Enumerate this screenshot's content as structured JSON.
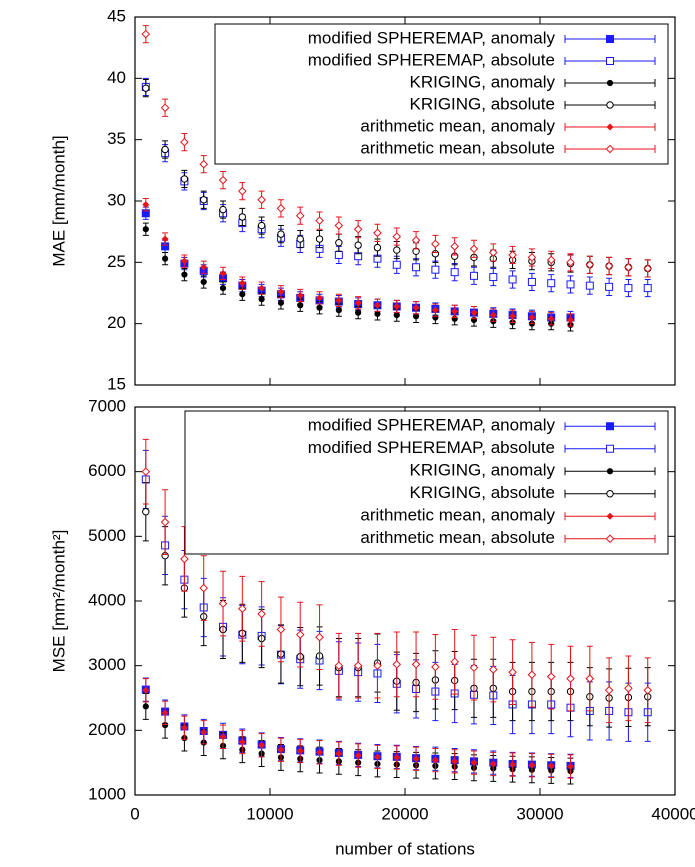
{
  "chart_data": [
    {
      "type": "scatter",
      "ylabel": "MAE [mm/month]",
      "legend": "upper right",
      "xlim": [
        0,
        40000
      ],
      "ylim": [
        15,
        45
      ],
      "yticks": [
        15,
        20,
        25,
        30,
        35,
        40,
        45
      ],
      "x": [
        800,
        2230,
        3660,
        5090,
        6520,
        7950,
        9380,
        10810,
        12240,
        13670,
        15100,
        16530,
        17960,
        19390,
        20820,
        22250,
        23680,
        25110,
        26540,
        27970,
        29400,
        30830,
        32260,
        33690,
        35120,
        36550,
        37980
      ],
      "series": [
        {
          "name": "modified SPHEREMAP, anomaly",
          "color": "#1a1aff",
          "marker": "square",
          "filled": true,
          "error": 0.5,
          "values": [
            29.0,
            26.3,
            24.9,
            24.3,
            23.7,
            23.1,
            22.7,
            22.4,
            22.1,
            21.9,
            21.8,
            21.6,
            21.5,
            21.4,
            21.3,
            21.2,
            21.0,
            20.9,
            20.8,
            20.7,
            20.6,
            20.5,
            20.5,
            null,
            null,
            null,
            null
          ]
        },
        {
          "name": "modified SPHEREMAP, absolute",
          "color": "#1a1aff",
          "marker": "square",
          "filled": false,
          "error": 0.7,
          "values": [
            39.3,
            33.9,
            31.6,
            30.0,
            29.0,
            28.2,
            27.7,
            27.0,
            26.5,
            26.1,
            25.6,
            25.5,
            25.3,
            24.8,
            24.6,
            24.4,
            24.2,
            23.9,
            23.8,
            23.6,
            23.4,
            23.3,
            23.2,
            23.1,
            23.0,
            22.9,
            22.9
          ]
        },
        {
          "name": "KRIGING, anomaly",
          "color": "#000000",
          "marker": "circle",
          "filled": true,
          "error": 0.5,
          "values": [
            27.7,
            25.3,
            24.0,
            23.4,
            22.9,
            22.4,
            22.0,
            21.7,
            21.5,
            21.3,
            21.1,
            20.9,
            20.8,
            20.7,
            20.6,
            20.5,
            20.4,
            20.3,
            20.2,
            20.1,
            20.0,
            20.0,
            19.9,
            null,
            null,
            null,
            null
          ]
        },
        {
          "name": "KRIGING, absolute",
          "color": "#000000",
          "marker": "circle",
          "filled": false,
          "error": 0.7,
          "values": [
            39.2,
            34.2,
            31.8,
            30.1,
            29.3,
            28.7,
            28.0,
            27.3,
            26.9,
            26.9,
            26.6,
            26.4,
            26.2,
            26.0,
            25.9,
            25.7,
            25.5,
            25.4,
            25.3,
            25.2,
            25.1,
            25.0,
            24.9,
            24.8,
            24.7,
            24.6,
            24.5
          ]
        },
        {
          "name": "arithmetic mean, anomaly",
          "color": "#e8141a",
          "marker": "diamond",
          "filled": true,
          "error": 0.5,
          "values": [
            29.7,
            26.9,
            25.1,
            24.6,
            24.1,
            23.3,
            22.9,
            22.6,
            22.3,
            22.1,
            21.9,
            21.7,
            21.5,
            21.4,
            21.3,
            21.1,
            21.0,
            20.9,
            20.7,
            20.6,
            20.5,
            20.4,
            20.3,
            null,
            null,
            null,
            null
          ]
        },
        {
          "name": "arithmetic mean, absolute",
          "color": "#e8141a",
          "marker": "diamond",
          "filled": false,
          "error": 0.7,
          "values": [
            43.6,
            37.6,
            34.8,
            33.0,
            31.7,
            30.8,
            30.1,
            29.4,
            28.8,
            28.4,
            28.0,
            27.7,
            27.4,
            27.1,
            26.8,
            26.5,
            26.3,
            26.1,
            25.8,
            25.6,
            25.4,
            25.2,
            25.0,
            24.8,
            24.7,
            24.6,
            24.5
          ]
        }
      ]
    },
    {
      "type": "scatter",
      "ylabel": "MSE [mm²/month²]",
      "xlabel": "number of stations",
      "legend": "upper right",
      "xlim": [
        0,
        40000
      ],
      "xticks": [
        0,
        10000,
        20000,
        30000,
        40000
      ],
      "ylim": [
        1000,
        7000
      ],
      "yticks": [
        1000,
        2000,
        3000,
        4000,
        5000,
        6000,
        7000
      ],
      "x": [
        800,
        2230,
        3660,
        5090,
        6520,
        7950,
        9380,
        10810,
        12240,
        13670,
        15100,
        16530,
        17960,
        19390,
        20820,
        22250,
        23680,
        25110,
        26540,
        27970,
        29400,
        30830,
        32260,
        33690,
        35120,
        36550,
        37980
      ],
      "series": [
        {
          "name": "modified SPHEREMAP, anomaly",
          "color": "#1a1aff",
          "marker": "square",
          "filled": true,
          "error": 180,
          "values": [
            2630,
            2290,
            2060,
            1990,
            1930,
            1840,
            1780,
            1710,
            1690,
            1670,
            1650,
            1620,
            1600,
            1590,
            1570,
            1560,
            1540,
            1520,
            1500,
            1480,
            1470,
            1460,
            1450,
            null,
            null,
            null,
            null
          ]
        },
        {
          "name": "modified SPHEREMAP, absolute",
          "color": "#1a1aff",
          "marker": "square",
          "filled": false,
          "error": 450,
          "values": [
            5880,
            4860,
            4330,
            3900,
            3600,
            3480,
            3460,
            3170,
            3100,
            3080,
            2920,
            2900,
            2880,
            2720,
            2640,
            2600,
            2570,
            2550,
            2540,
            2400,
            2400,
            2400,
            2350,
            2300,
            2300,
            2280,
            2280
          ]
        },
        {
          "name": "KRIGING, anomaly",
          "color": "#000000",
          "marker": "circle",
          "filled": true,
          "error": 200,
          "values": [
            2370,
            2080,
            1880,
            1810,
            1760,
            1700,
            1640,
            1580,
            1560,
            1540,
            1520,
            1500,
            1480,
            1470,
            1460,
            1450,
            1440,
            1420,
            1410,
            1400,
            1390,
            1380,
            1370,
            null,
            null,
            null,
            null
          ]
        },
        {
          "name": "KRIGING, absolute",
          "color": "#000000",
          "marker": "circle",
          "filled": false,
          "error": 450,
          "values": [
            5380,
            4700,
            4200,
            3760,
            3560,
            3500,
            3420,
            3180,
            3140,
            3150,
            2970,
            2970,
            3040,
            2760,
            2740,
            2780,
            2770,
            2650,
            2650,
            2600,
            2600,
            2600,
            2600,
            2520,
            2500,
            2510,
            2520
          ]
        },
        {
          "name": "arithmetic mean, anomaly",
          "color": "#e8141a",
          "marker": "diamond",
          "filled": true,
          "error": 180,
          "values": [
            2620,
            2270,
            2040,
            1970,
            1900,
            1820,
            1770,
            1700,
            1680,
            1660,
            1640,
            1610,
            1590,
            1580,
            1560,
            1540,
            1520,
            1500,
            1480,
            1470,
            1460,
            1450,
            1440,
            null,
            null,
            null,
            null
          ]
        },
        {
          "name": "arithmetic mean, absolute",
          "color": "#e8141a",
          "marker": "diamond",
          "filled": false,
          "error": 500,
          "values": [
            6000,
            5220,
            4650,
            4200,
            3960,
            3880,
            3800,
            3560,
            3480,
            3440,
            3000,
            3000,
            3000,
            3020,
            3020,
            2980,
            3060,
            2970,
            2940,
            2900,
            2860,
            2830,
            2800,
            2800,
            2620,
            2650,
            2620
          ]
        }
      ]
    }
  ]
}
